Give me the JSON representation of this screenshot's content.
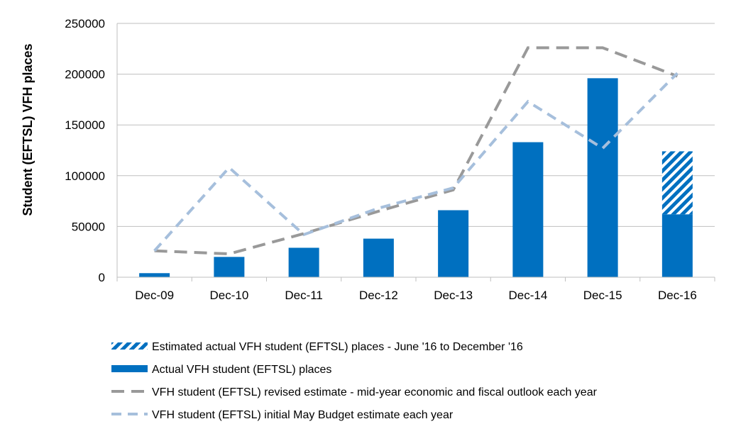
{
  "chart_data": {
    "type": "bar",
    "title": "",
    "xlabel": "",
    "ylabel": "Student (EFTSL) VFH places",
    "ylim": [
      0,
      250000
    ],
    "yticks": [
      0,
      50000,
      100000,
      150000,
      200000,
      250000
    ],
    "ytick_labels": [
      "0",
      "50000",
      "100000",
      "150000",
      "200000",
      "250000"
    ],
    "grid": true,
    "legend_position": "bottom",
    "categories": [
      "Dec-09",
      "Dec-10",
      "Dec-11",
      "Dec-12",
      "Dec-13",
      "Dec-14",
      "Dec-15",
      "Dec-16"
    ],
    "series": [
      {
        "name": "Actual VFH student (EFTSL) places",
        "kind": "bar",
        "color": "#0070c0",
        "values": [
          4000,
          20000,
          29000,
          38000,
          66000,
          133000,
          196000,
          62000
        ]
      },
      {
        "name": "Estimated actual VFH student (EFTSL) places - June '16 to December '16",
        "kind": "bar-stacked-hatched",
        "color": "#0070c0",
        "values": [
          0,
          0,
          0,
          0,
          0,
          0,
          0,
          62000
        ]
      },
      {
        "name": "VFH student (EFTSL) revised estimate - mid-year economic and fiscal outlook each year",
        "kind": "line-dashed",
        "color": "#999999",
        "values": [
          26000,
          23000,
          43000,
          65000,
          86000,
          226000,
          226000,
          198000
        ]
      },
      {
        "name": "VFH student (EFTSL) initial May Budget estimate each year",
        "kind": "line-dashed",
        "color": "#a6bfdc",
        "values": [
          26000,
          108000,
          42000,
          68000,
          88000,
          173000,
          127000,
          201000
        ]
      }
    ],
    "legend_order": [
      1,
      0,
      2,
      3
    ]
  }
}
